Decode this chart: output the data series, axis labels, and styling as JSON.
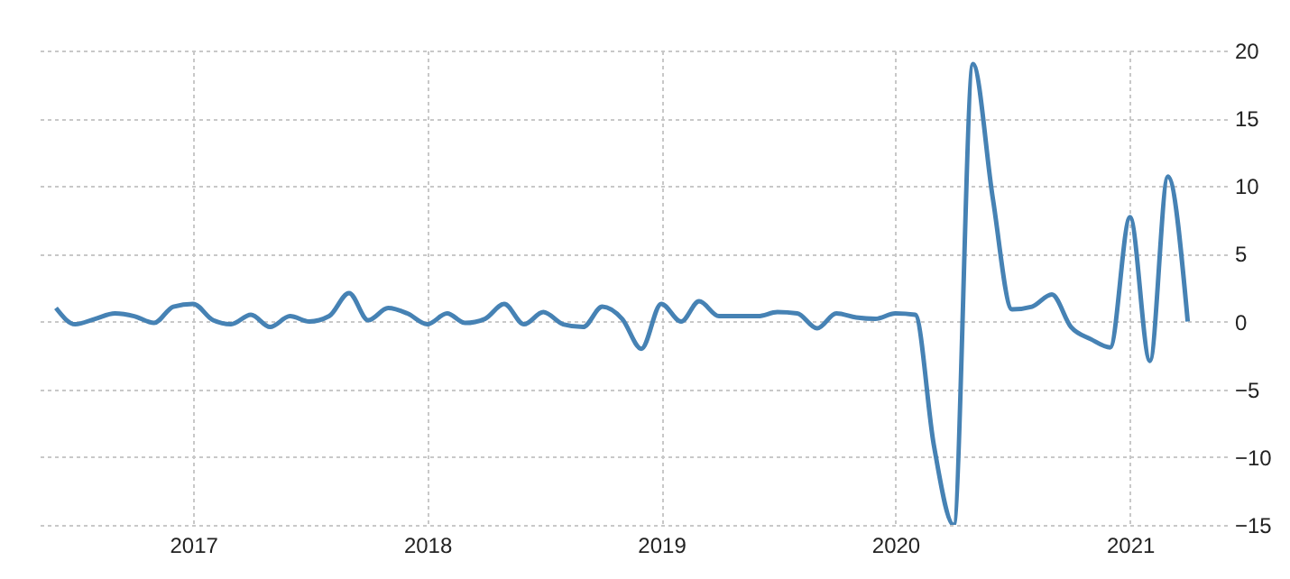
{
  "chart_data": {
    "type": "line",
    "x": [
      "2016-06",
      "2016-07",
      "2016-08",
      "2016-09",
      "2016-10",
      "2016-11",
      "2016-12",
      "2017-01",
      "2017-02",
      "2017-03",
      "2017-04",
      "2017-05",
      "2017-06",
      "2017-07",
      "2017-08",
      "2017-09",
      "2017-10",
      "2017-11",
      "2017-12",
      "2018-01",
      "2018-02",
      "2018-03",
      "2018-04",
      "2018-05",
      "2018-06",
      "2018-07",
      "2018-08",
      "2018-09",
      "2018-10",
      "2018-11",
      "2018-12",
      "2019-01",
      "2019-02",
      "2019-03",
      "2019-04",
      "2019-05",
      "2019-06",
      "2019-07",
      "2019-08",
      "2019-09",
      "2019-10",
      "2019-11",
      "2019-12",
      "2020-01",
      "2020-02",
      "2020-03",
      "2020-04",
      "2020-05",
      "2020-06",
      "2020-07",
      "2020-08",
      "2020-09",
      "2020-10",
      "2020-11",
      "2020-12",
      "2021-01",
      "2021-02",
      "2021-03",
      "2021-04"
    ],
    "series": [
      {
        "color": "#4682b4",
        "values": [
          1.0,
          -0.2,
          0.2,
          0.6,
          0.4,
          -0.1,
          1.1,
          1.3,
          0.1,
          -0.2,
          0.5,
          -0.4,
          0.4,
          0.0,
          0.4,
          2.1,
          0.1,
          1.0,
          0.6,
          -0.2,
          0.6,
          -0.1,
          0.2,
          1.3,
          -0.2,
          0.7,
          -0.2,
          -0.4,
          1.1,
          0.2,
          -2.0,
          1.3,
          0.0,
          1.5,
          0.4,
          0.4,
          0.4,
          0.7,
          0.6,
          -0.5,
          0.6,
          0.3,
          0.2,
          0.6,
          0.5,
          -9.1,
          -15,
          19.0,
          9.1,
          0.9,
          1.1,
          2.0,
          -0.4,
          -1.3,
          -1.9,
          7.7,
          -2.9,
          10.7,
          0
        ]
      }
    ],
    "xlim": [
      "2016-05",
      "2021-06"
    ],
    "xticks": [
      "2017",
      "2018",
      "2019",
      "2020",
      "2021"
    ],
    "ylim": [
      -15,
      20
    ],
    "yticks": [
      -15,
      -10,
      -5,
      0,
      5,
      10,
      15,
      20
    ],
    "grid": true
  }
}
